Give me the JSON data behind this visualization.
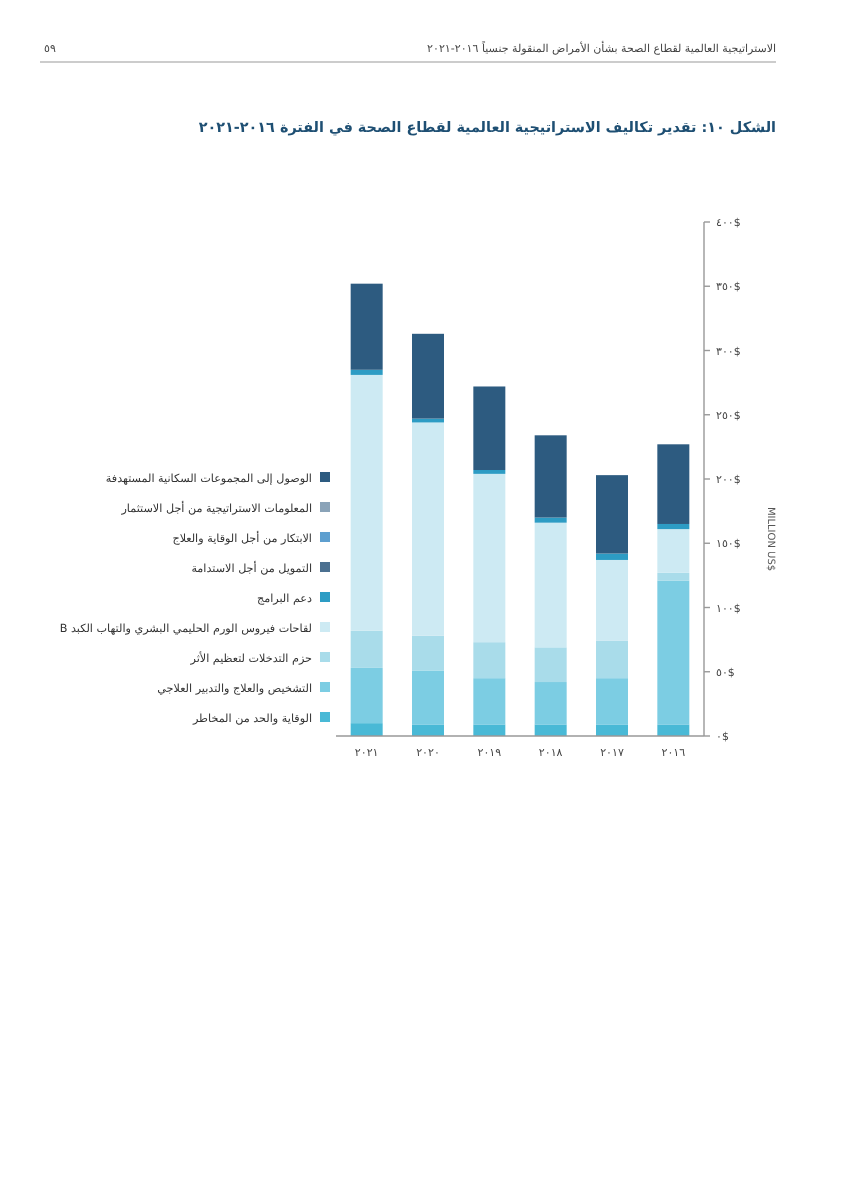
{
  "chart_data": {
    "type": "bar",
    "stacked": true,
    "title": "الشكل ١٠: تقدير تكاليف الاستراتيجية العالمية لقطاع الصحة في الفترة ٢٠١٦-٢٠٢١",
    "annotations": [
      "الاستراتيجية العالمية لقطاع الصحة بشأن الأمراض المنقولة جنسياً ٢٠١٦-٢٠٢١",
      "٥٩"
    ],
    "ylabel": "MILLION US$",
    "categories": [
      "٢٠٢١",
      "٢٠٢٠",
      "٢٠١٩",
      "٢٠١٨",
      "٢٠١٧",
      "٢٠١٦"
    ],
    "ylim": [
      0,
      400
    ],
    "yticks": [
      {
        "value": 0,
        "label": "٠$"
      },
      {
        "value": 50,
        "label": "٥٠$"
      },
      {
        "value": 100,
        "label": "١٠٠$"
      },
      {
        "value": 150,
        "label": "١٥٠$"
      },
      {
        "value": 200,
        "label": "٢٠٠$"
      },
      {
        "value": 250,
        "label": "٢٥٠$"
      },
      {
        "value": 300,
        "label": "٣٠٠$"
      },
      {
        "value": 350,
        "label": "٣٥٠$"
      },
      {
        "value": 400,
        "label": "٤٠٠$"
      }
    ],
    "legend": "left",
    "grid": false,
    "series": [
      {
        "name": "الوقاية والحد من المخاطر",
        "color": "#49b9d6",
        "values": [
          10,
          9,
          9,
          9,
          9,
          9
        ]
      },
      {
        "name": "التشخيص والعلاج والتدبير العلاجي",
        "color": "#7ccde3",
        "values": [
          43,
          42,
          36,
          33,
          36,
          112
        ]
      },
      {
        "name": "حزم التدخلات لتعظيم الأثر",
        "color": "#a9dcea",
        "values": [
          29,
          27,
          28,
          27,
          29,
          6
        ]
      },
      {
        "name": "لقاحات فيروس الورم الحليمي البشري والتهاب الكبد B",
        "color": "#cdeaf3",
        "values": [
          199,
          166,
          131,
          97,
          63,
          34
        ]
      },
      {
        "name": "دعم البرامج",
        "color": "#2d9cc4",
        "values": [
          4,
          3,
          3,
          4,
          5,
          4
        ]
      },
      {
        "name": "التمويل من أجل الاستدامة",
        "color": "#4b7090",
        "values": [
          0,
          0,
          0,
          0,
          0,
          0
        ]
      },
      {
        "name": "الابتكار من أجل الوقاية والعلاج",
        "color": "#5e9fcf",
        "values": [
          0,
          0,
          0,
          0,
          0,
          0
        ]
      },
      {
        "name": "المعلومات الاستراتيجية من أجل الاستثمار",
        "color": "#8aa3b8",
        "values": [
          0,
          0,
          0,
          0,
          0,
          0
        ]
      },
      {
        "name": "الوصول إلى المجموعات السكانية المستهدفة",
        "color": "#2d5b80",
        "values": [
          67,
          66,
          65,
          64,
          61,
          62
        ]
      }
    ]
  }
}
